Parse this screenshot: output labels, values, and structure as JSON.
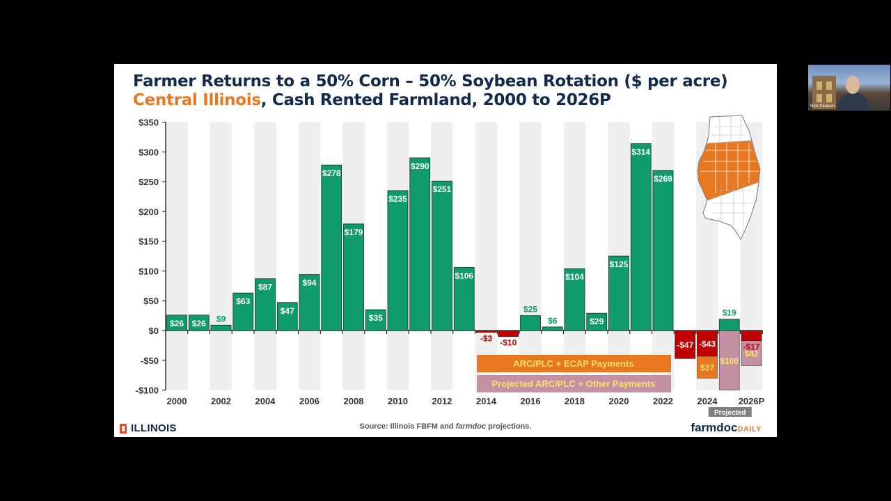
{
  "slide": {
    "title_line1": "Farmer Returns to a 50% Corn – 50% Soybean Rotation ($ per acre)",
    "title_highlight": "Central Illinois",
    "title_line2_rest": ", Cash Rented Farmland, 2000 to 2026P",
    "source_prefix": "Source: Illinois FBFM and ",
    "source_italic": "farmdoc",
    "source_suffix": " projections.",
    "logo_left": "ILLINOIS",
    "logo_right_main": "farmdoc",
    "logo_right_sub": "DAILY"
  },
  "webcam": {
    "name": "Nick Paulson"
  },
  "chart_data": {
    "type": "bar",
    "title": "Farmer Returns to a 50% Corn – 50% Soybean Rotation ($ per acre)",
    "subtitle": "Central Illinois, Cash Rented Farmland, 2000 to 2026P",
    "x": [
      "2000",
      "2001",
      "2002",
      "2003",
      "2004",
      "2005",
      "2006",
      "2007",
      "2008",
      "2009",
      "2010",
      "2011",
      "2012",
      "2013",
      "2014",
      "2015",
      "2016",
      "2017",
      "2018",
      "2019",
      "2020",
      "2021",
      "2022",
      "2023",
      "2024",
      "2025",
      "2026P"
    ],
    "xtick_labels": [
      "2000",
      "2002",
      "2004",
      "2006",
      "2008",
      "2010",
      "2012",
      "2014",
      "2016",
      "2018",
      "2020",
      "2022",
      "2024",
      "2026P"
    ],
    "ylim": [
      -100,
      350
    ],
    "yticks": [
      -100,
      -50,
      0,
      50,
      100,
      150,
      200,
      250,
      300,
      350
    ],
    "ytick_labels": [
      "-$100",
      "-$50",
      "$0",
      "$50",
      "$100",
      "$150",
      "$200",
      "$250",
      "$300",
      "$350"
    ],
    "series": [
      {
        "name": "Farmer returns",
        "values": [
          26,
          26,
          9,
          63,
          87,
          47,
          94,
          278,
          179,
          35,
          235,
          290,
          251,
          106,
          -3,
          -10,
          25,
          6,
          104,
          29,
          125,
          314,
          269,
          -47,
          -43,
          19,
          -17
        ],
        "labels": [
          "$26",
          "$26",
          "$9",
          "$63",
          "$87",
          "$47",
          "$94",
          "$278",
          "$179",
          "$35",
          "$235",
          "$290",
          "$251",
          "$106",
          "-$3",
          "-$10",
          "$25",
          "$6",
          "$104",
          "$29",
          "$125",
          "$314",
          "$269",
          "-$47",
          "-$43",
          "$19",
          "-$17"
        ]
      },
      {
        "name": "ARC/PLC + ECAP Payments",
        "x": [
          "2024"
        ],
        "values": [
          37
        ],
        "labels": [
          "$37"
        ]
      },
      {
        "name": "Projected ARC/PLC + Other Payments",
        "x": [
          "2025",
          "2026P"
        ],
        "values": [
          100,
          42
        ],
        "labels": [
          "$100",
          "$42"
        ]
      }
    ],
    "legend": [
      "ARC/PLC + ECAP Payments",
      "Projected ARC/PLC + Other Payments"
    ],
    "legend_placement": "bottom-right",
    "projected_tag": "Projected",
    "colors": {
      "positive": "#0f9b6e",
      "negative": "#c00000",
      "ecap": "#e87722",
      "projected": "#c490a4",
      "label_positive_outside": "#0f9b6e",
      "label_negative_outside": "#c00000",
      "label_payment": "#ffe066",
      "background_band": "#efefef",
      "map_highlight": "#e87722"
    },
    "grid": false,
    "inset_map": "Illinois counties with central region highlighted"
  }
}
